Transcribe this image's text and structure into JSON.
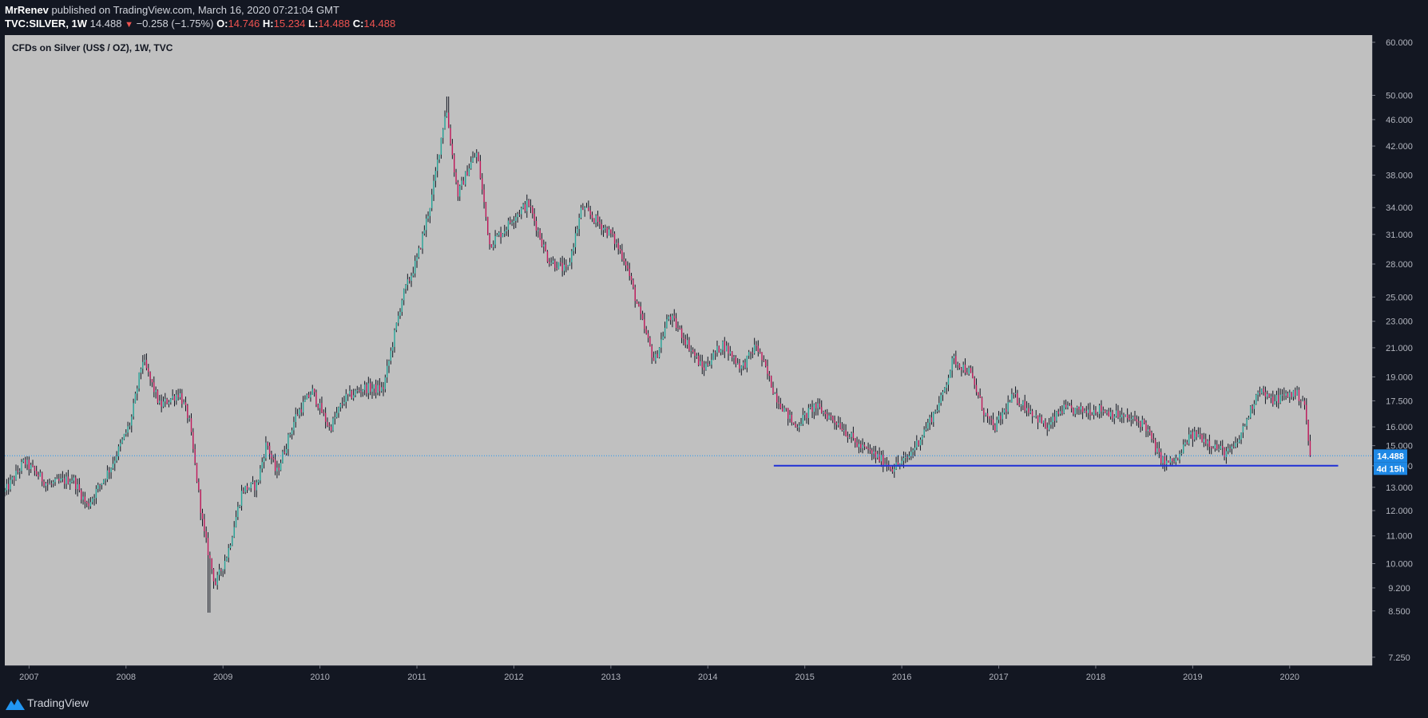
{
  "header": {
    "author": "MrRenev",
    "published_text": " published on TradingView.com, March 16, 2020 07:21:04 GMT",
    "symbol": "TVC:SILVER, 1W",
    "last": "14.488",
    "change": "−0.258 (−1.75%)",
    "open_label": "O:",
    "open": "14.746",
    "high_label": "H:",
    "high": "15.234",
    "low_label": "L:",
    "low": "14.488",
    "close_label": "C:",
    "close": "14.488"
  },
  "footer": {
    "brand": "TradingView"
  },
  "colors": {
    "page_bg": "#131722",
    "plot_bg": "#c0c0c0",
    "candle_up": "#26a69a",
    "candle_down": "#c2185b",
    "wick": "#131722",
    "support_line": "#1e2fd6",
    "price_line": "#2196f3",
    "price_badge": "#1e88e5"
  },
  "chart_data": {
    "type": "candlestick",
    "title": "CFDs on Silver (US$ / OZ), 1W, TVC",
    "xlabel": "",
    "ylabel": "",
    "y_scale": "log",
    "y_ticks": [
      "7.250",
      "8.500",
      "9.200",
      "10.000",
      "11.000",
      "12.000",
      "13.000",
      "14.000",
      "15.000",
      "16.000",
      "17.500",
      "19.000",
      "21.000",
      "23.000",
      "25.000",
      "28.000",
      "31.000",
      "34.000",
      "38.000",
      "42.000",
      "46.000",
      "50.000",
      "60.000"
    ],
    "y_tick_values": [
      7.25,
      8.5,
      9.2,
      10,
      11,
      12,
      13,
      14,
      15,
      16,
      17.5,
      19,
      21,
      23,
      25,
      28,
      31,
      34,
      38,
      42,
      46,
      50,
      60
    ],
    "x_ticks": [
      "2007",
      "2008",
      "2009",
      "2010",
      "2011",
      "2012",
      "2013",
      "2014",
      "2015",
      "2016",
      "2017",
      "2018",
      "2019",
      "2020"
    ],
    "x_range": [
      2006.75,
      2020.85
    ],
    "y_range": [
      7.05,
      61.5
    ],
    "grid": false,
    "price_series_keypoints": [
      [
        2006.75,
        12.8
      ],
      [
        2006.95,
        14.2
      ],
      [
        2007.2,
        13.1
      ],
      [
        2007.45,
        13.4
      ],
      [
        2007.6,
        12.2
      ],
      [
        2007.85,
        14.0
      ],
      [
        2008.05,
        16.3
      ],
      [
        2008.17,
        20.2
      ],
      [
        2008.35,
        17.2
      ],
      [
        2008.55,
        18.0
      ],
      [
        2008.65,
        16.4
      ],
      [
        2008.8,
        11.2
      ],
      [
        2008.92,
        9.3
      ],
      [
        2009.05,
        10.4
      ],
      [
        2009.2,
        12.9
      ],
      [
        2009.35,
        13.1
      ],
      [
        2009.45,
        15.2
      ],
      [
        2009.55,
        13.6
      ],
      [
        2009.75,
        16.6
      ],
      [
        2009.92,
        18.1
      ],
      [
        2010.1,
        15.9
      ],
      [
        2010.25,
        17.6
      ],
      [
        2010.45,
        18.3
      ],
      [
        2010.65,
        18.2
      ],
      [
        2010.85,
        25.0
      ],
      [
        2011.0,
        28.4
      ],
      [
        2011.15,
        35.0
      ],
      [
        2011.3,
        48.0
      ],
      [
        2011.42,
        35.5
      ],
      [
        2011.55,
        39.5
      ],
      [
        2011.62,
        41.0
      ],
      [
        2011.75,
        30.0
      ],
      [
        2011.9,
        31.5
      ],
      [
        2012.0,
        33.0
      ],
      [
        2012.15,
        34.5
      ],
      [
        2012.35,
        28.5
      ],
      [
        2012.55,
        27.3
      ],
      [
        2012.7,
        34.0
      ],
      [
        2012.85,
        32.5
      ],
      [
        2013.0,
        31.0
      ],
      [
        2013.15,
        28.3
      ],
      [
        2013.3,
        23.5
      ],
      [
        2013.45,
        20.0
      ],
      [
        2013.6,
        23.5
      ],
      [
        2013.75,
        21.8
      ],
      [
        2013.95,
        19.5
      ],
      [
        2014.15,
        21.3
      ],
      [
        2014.35,
        19.6
      ],
      [
        2014.5,
        21.2
      ],
      [
        2014.7,
        17.8
      ],
      [
        2014.9,
        16.0
      ],
      [
        2015.1,
        17.2
      ],
      [
        2015.35,
        16.2
      ],
      [
        2015.55,
        15.0
      ],
      [
        2015.7,
        14.6
      ],
      [
        2015.9,
        13.9
      ],
      [
        2016.05,
        14.3
      ],
      [
        2016.2,
        15.5
      ],
      [
        2016.4,
        17.5
      ],
      [
        2016.53,
        20.2
      ],
      [
        2016.7,
        19.3
      ],
      [
        2016.85,
        16.8
      ],
      [
        2016.95,
        15.9
      ],
      [
        2017.15,
        17.8
      ],
      [
        2017.35,
        16.8
      ],
      [
        2017.5,
        15.9
      ],
      [
        2017.65,
        17.0
      ],
      [
        2017.85,
        16.9
      ],
      [
        2018.05,
        17.0
      ],
      [
        2018.3,
        16.5
      ],
      [
        2018.5,
        16.2
      ],
      [
        2018.65,
        14.5
      ],
      [
        2018.72,
        14.1
      ],
      [
        2018.85,
        14.3
      ],
      [
        2018.95,
        15.4
      ],
      [
        2019.05,
        15.6
      ],
      [
        2019.25,
        14.9
      ],
      [
        2019.35,
        14.6
      ],
      [
        2019.45,
        15.0
      ],
      [
        2019.6,
        17.0
      ],
      [
        2019.68,
        18.3
      ],
      [
        2019.8,
        17.5
      ],
      [
        2019.95,
        17.8
      ],
      [
        2020.05,
        18.0
      ],
      [
        2020.15,
        17.5
      ],
      [
        2020.2,
        14.8
      ],
      [
        2020.21,
        14.488
      ]
    ],
    "extremes": {
      "high_2011": 49.8,
      "low_2008": 8.45
    },
    "support_line": {
      "price": 14.0,
      "x_start": 2014.68,
      "x_end": 2020.5
    },
    "last_price_label": "14.488",
    "last_price": 14.488,
    "countdown_label": "4d 15h"
  }
}
